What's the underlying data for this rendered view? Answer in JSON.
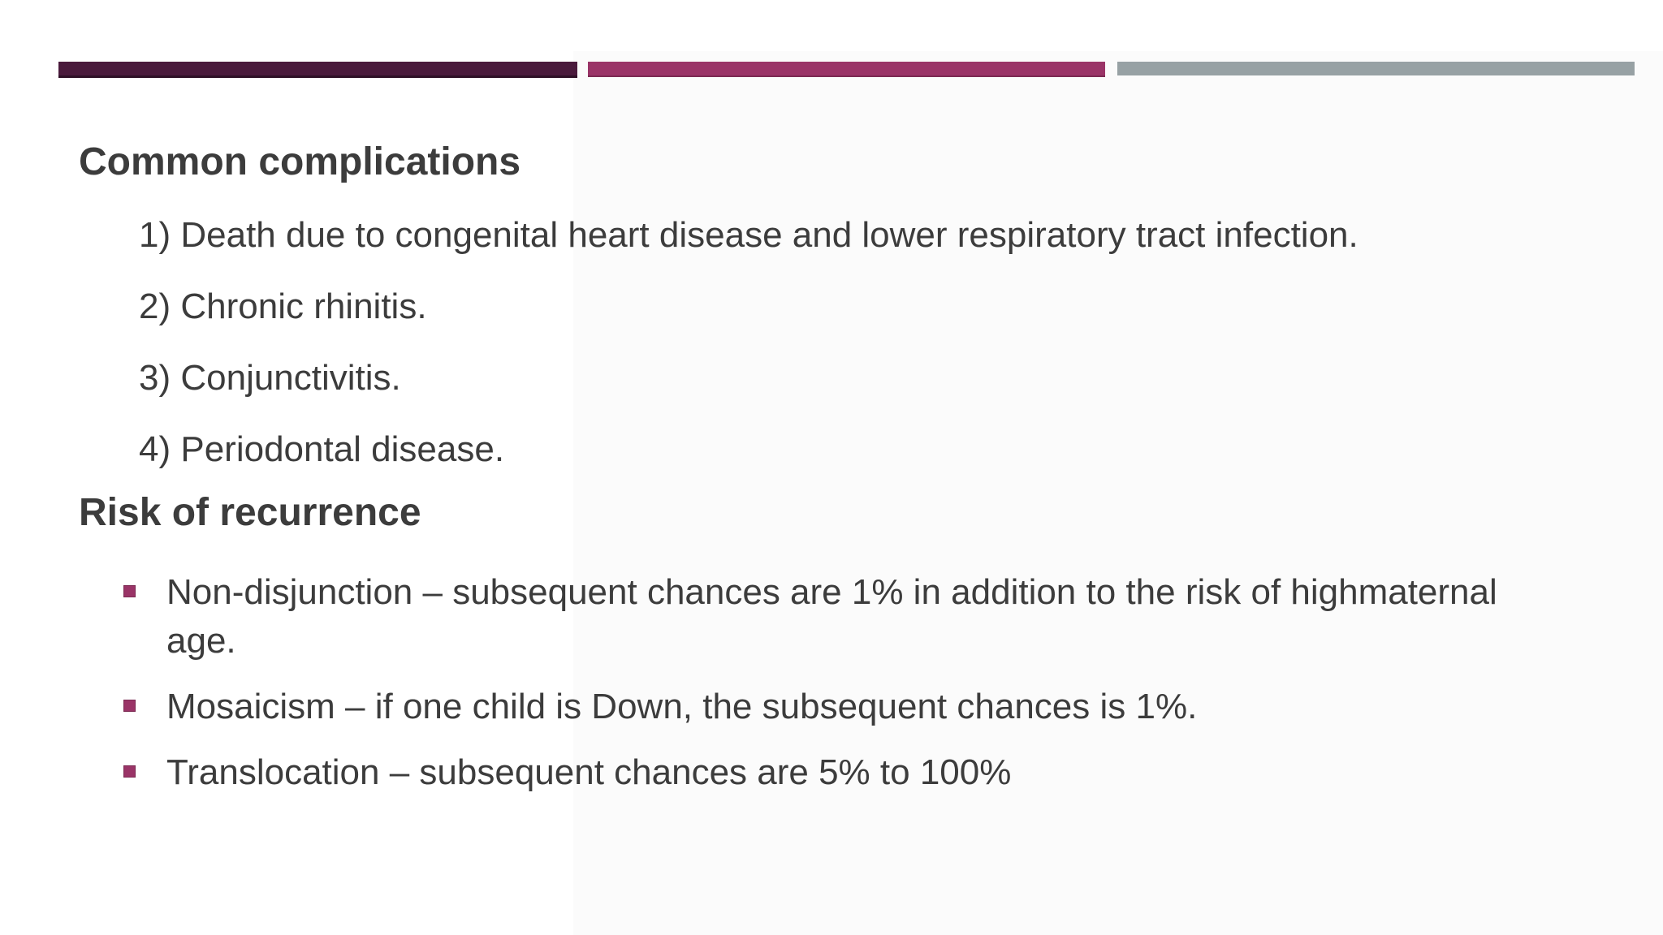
{
  "slide": {
    "heading1": "Common complications",
    "numbered": [
      "1) Death due to congenital heart disease and lower respiratory tract infection.",
      "2) Chronic rhinitis.",
      "3) Conjunctivitis.",
      "4) Periodontal disease."
    ],
    "heading2": "Risk of recurrence",
    "bullets": [
      {
        "lines": [
          "Non-disjunction – subsequent chances are 1% in addition to the risk of highmaternal",
          "age."
        ]
      },
      {
        "lines": [
          "Mosaicism – if one child is Down, the subsequent chances is 1%."
        ]
      },
      {
        "lines": [
          "Translocation – subsequent chances are 5% to 100%"
        ]
      }
    ],
    "colors": {
      "text": "#3c3c3c",
      "accent_bar_dark_plum": "#4a1a3c",
      "accent_bar_magenta": "#9a3467",
      "accent_bar_gray": "#97a1a4",
      "bullet_marker": "#9a3467",
      "background": "#ffffff"
    }
  }
}
